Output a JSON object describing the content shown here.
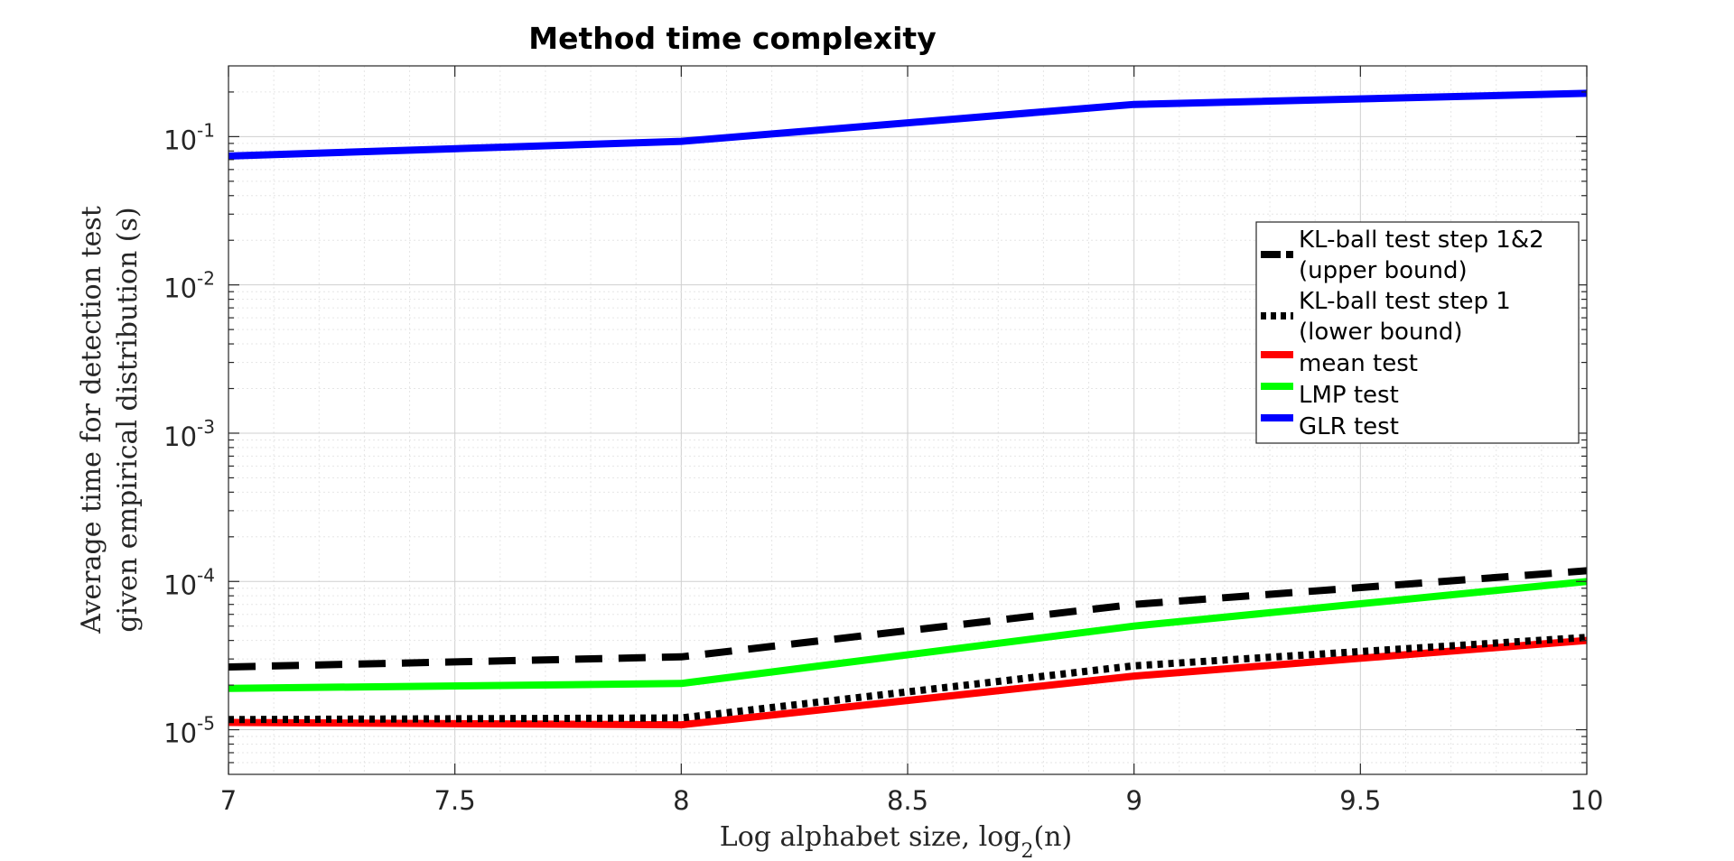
{
  "chart_data": {
    "type": "line",
    "title": "Method time complexity",
    "xlabel": "Log alphabet size, log2(n)",
    "ylabel_line1": "Average time for detection test",
    "ylabel_line2": "given empirical distribution (s)",
    "xlim": [
      7,
      10
    ],
    "ylim": [
      5e-06,
      0.3
    ],
    "yscale": "log",
    "grid": true,
    "minor_grid": true,
    "legend_position": "right",
    "x_ticks": [
      7,
      7.5,
      8,
      8.5,
      9,
      9.5,
      10
    ],
    "x_tick_labels": [
      "7",
      "7.5",
      "8",
      "8.5",
      "9",
      "9.5",
      "10"
    ],
    "y_ticks": [
      {
        "value": 1e-05,
        "base": "10",
        "exp": "-5"
      },
      {
        "value": 0.0001,
        "base": "10",
        "exp": "-4"
      },
      {
        "value": 0.001,
        "base": "10",
        "exp": "-3"
      },
      {
        "value": 0.01,
        "base": "10",
        "exp": "-2"
      },
      {
        "value": 0.1,
        "base": "10",
        "exp": "-1"
      }
    ],
    "x": [
      7,
      8,
      9,
      10
    ],
    "series": [
      {
        "name": "KL-ball test step 1&2",
        "name_line2": "(upper bound)",
        "color": "#000000",
        "style": "dashed",
        "values": [
          2.65e-05,
          3.1e-05,
          7e-05,
          0.000118
        ]
      },
      {
        "name": "KL-ball test step 1",
        "name_line2": "(lower bound)",
        "color": "#000000",
        "style": "dotted",
        "values": [
          1.17e-05,
          1.2e-05,
          2.7e-05,
          4.2e-05
        ]
      },
      {
        "name": "mean test",
        "color": "#ff0000",
        "style": "solid",
        "values": [
          1.12e-05,
          1.08e-05,
          2.3e-05,
          4e-05
        ]
      },
      {
        "name": "LMP test",
        "color": "#00ff00",
        "style": "solid",
        "values": [
          1.9e-05,
          2.05e-05,
          5e-05,
          0.0001
        ]
      },
      {
        "name": "GLR test",
        "color": "#0000ff",
        "style": "solid",
        "values": [
          0.074,
          0.093,
          0.165,
          0.196
        ]
      }
    ]
  }
}
